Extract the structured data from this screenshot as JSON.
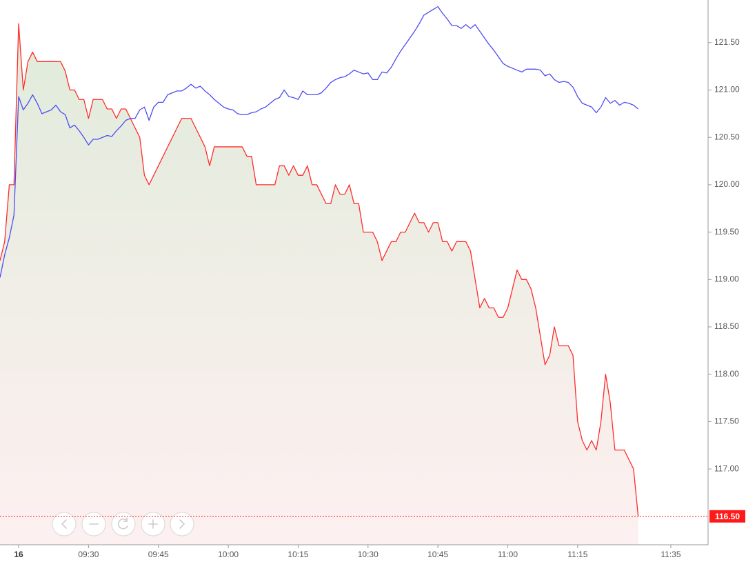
{
  "chart_data": {
    "type": "line",
    "x": [
      "09:11",
      "09:12",
      "09:13",
      "09:14",
      "09:15",
      "09:16",
      "09:17",
      "09:18",
      "09:19",
      "09:20",
      "09:21",
      "09:22",
      "09:23",
      "09:24",
      "09:25",
      "09:26",
      "09:27",
      "09:28",
      "09:29",
      "09:30",
      "09:31",
      "09:32",
      "09:33",
      "09:34",
      "09:35",
      "09:36",
      "09:37",
      "09:38",
      "09:39",
      "09:40",
      "09:41",
      "09:42",
      "09:43",
      "09:44",
      "09:45",
      "09:46",
      "09:47",
      "09:48",
      "09:49",
      "09:50",
      "09:51",
      "09:52",
      "09:53",
      "09:54",
      "09:55",
      "09:56",
      "09:57",
      "09:58",
      "09:59",
      "10:00",
      "10:01",
      "10:02",
      "10:03",
      "10:04",
      "10:05",
      "10:06",
      "10:07",
      "10:08",
      "10:09",
      "10:10",
      "10:11",
      "10:12",
      "10:13",
      "10:14",
      "10:15",
      "10:16",
      "10:17",
      "10:18",
      "10:19",
      "10:20",
      "10:21",
      "10:22",
      "10:23",
      "10:24",
      "10:25",
      "10:26",
      "10:27",
      "10:28",
      "10:29",
      "10:30",
      "10:31",
      "10:32",
      "10:33",
      "10:34",
      "10:35",
      "10:36",
      "10:37",
      "10:38",
      "10:39",
      "10:40",
      "10:41",
      "10:42",
      "10:43",
      "10:44",
      "10:45",
      "10:46",
      "10:47",
      "10:48",
      "10:49",
      "10:50",
      "10:51",
      "10:52",
      "10:53",
      "10:54",
      "10:55",
      "10:56",
      "10:57",
      "10:58",
      "10:59",
      "11:00",
      "11:01",
      "11:02",
      "11:03",
      "11:04",
      "11:05",
      "11:06",
      "11:07",
      "11:08",
      "11:09",
      "11:10",
      "11:11",
      "11:12",
      "11:13",
      "11:14",
      "11:15",
      "11:16",
      "11:17",
      "11:18",
      "11:19",
      "11:20",
      "11:21",
      "11:22",
      "11:23",
      "11:24",
      "11:25",
      "11:26",
      "11:27",
      "11:28"
    ],
    "series": [
      {
        "color": "#ff2b2b",
        "values": [
          119.2,
          119.4,
          120.0,
          120.0,
          121.7,
          121.0,
          121.3,
          121.4,
          121.3,
          121.3,
          121.3,
          121.3,
          121.3,
          121.3,
          121.2,
          121.0,
          121.0,
          120.9,
          120.9,
          120.7,
          120.9,
          120.9,
          120.9,
          120.8,
          120.8,
          120.7,
          120.8,
          120.8,
          120.7,
          120.6,
          120.5,
          120.1,
          120.0,
          120.1,
          120.2,
          120.3,
          120.4,
          120.5,
          120.6,
          120.7,
          120.7,
          120.7,
          120.6,
          120.5,
          120.4,
          120.2,
          120.4,
          120.4,
          120.4,
          120.4,
          120.4,
          120.4,
          120.4,
          120.3,
          120.3,
          120.0,
          120.0,
          120.0,
          120.0,
          120.0,
          120.2,
          120.2,
          120.1,
          120.2,
          120.1,
          120.1,
          120.2,
          120.0,
          120.0,
          119.9,
          119.8,
          119.8,
          120.0,
          119.9,
          119.9,
          120.0,
          119.8,
          119.8,
          119.5,
          119.5,
          119.5,
          119.4,
          119.2,
          119.3,
          119.4,
          119.4,
          119.5,
          119.5,
          119.6,
          119.7,
          119.6,
          119.6,
          119.5,
          119.6,
          119.6,
          119.4,
          119.4,
          119.3,
          119.4,
          119.4,
          119.4,
          119.3,
          119.0,
          118.7,
          118.8,
          118.7,
          118.7,
          118.6,
          118.6,
          118.7,
          118.9,
          119.1,
          119.0,
          119.0,
          118.9,
          118.7,
          118.4,
          118.1,
          118.2,
          118.5,
          118.3,
          118.3,
          118.3,
          118.2,
          117.5,
          117.3,
          117.2,
          117.3,
          117.2,
          117.5,
          118.0,
          117.7,
          117.2,
          117.2,
          117.2,
          117.1,
          117.0,
          116.5
        ]
      },
      {
        "color": "#4b4bf5",
        "values": [
          119.02,
          119.26,
          119.44,
          119.68,
          120.93,
          120.79,
          120.86,
          120.95,
          120.86,
          120.75,
          120.77,
          120.79,
          120.84,
          120.77,
          120.74,
          120.6,
          120.63,
          120.57,
          120.5,
          120.42,
          120.48,
          120.48,
          120.5,
          120.52,
          120.51,
          120.57,
          120.62,
          120.68,
          120.7,
          120.7,
          120.79,
          120.82,
          120.68,
          120.82,
          120.87,
          120.87,
          120.95,
          120.97,
          120.99,
          120.99,
          121.02,
          121.06,
          121.02,
          121.04,
          120.99,
          120.95,
          120.9,
          120.86,
          120.82,
          120.8,
          120.79,
          120.75,
          120.74,
          120.74,
          120.76,
          120.77,
          120.8,
          120.82,
          120.86,
          120.9,
          120.92,
          121.0,
          120.93,
          120.92,
          120.9,
          120.99,
          120.95,
          120.95,
          120.95,
          120.97,
          121.02,
          121.08,
          121.11,
          121.13,
          121.14,
          121.17,
          121.21,
          121.19,
          121.17,
          121.18,
          121.11,
          121.11,
          121.19,
          121.18,
          121.24,
          121.33,
          121.41,
          121.48,
          121.55,
          121.62,
          121.7,
          121.79,
          121.82,
          121.85,
          121.88,
          121.81,
          121.75,
          121.68,
          121.68,
          121.65,
          121.69,
          121.65,
          121.69,
          121.62,
          121.55,
          121.48,
          121.42,
          121.35,
          121.28,
          121.25,
          121.23,
          121.21,
          121.19,
          121.22,
          121.22,
          121.22,
          121.21,
          121.15,
          121.17,
          121.11,
          121.08,
          121.09,
          121.08,
          121.03,
          120.93,
          120.86,
          120.84,
          120.82,
          120.76,
          120.82,
          120.92,
          120.86,
          120.89,
          120.84,
          120.87,
          120.86,
          120.84,
          120.8
        ]
      }
    ],
    "xlim": [
      "09:11",
      "11:43"
    ],
    "xticks": [
      {
        "value": "09:15",
        "label": "16"
      },
      "09:30",
      "09:45",
      "10:00",
      "10:15",
      "10:30",
      "10:45",
      "11:00",
      "11:15",
      "11:35"
    ],
    "ylim": [
      116.2,
      121.95
    ],
    "yticks": [
      {
        "value": 117,
        "label": "117.00"
      },
      {
        "value": 117.5,
        "label": "117.50"
      },
      {
        "value": 118,
        "label": "118.00"
      },
      {
        "value": 118.5,
        "label": "118.50"
      },
      {
        "value": 119,
        "label": "119.00"
      },
      {
        "value": 119.5,
        "label": "119.50"
      },
      {
        "value": 120,
        "label": "120.00"
      },
      {
        "value": 120.5,
        "label": "120.50"
      },
      {
        "value": 121,
        "label": "121.00"
      },
      {
        "value": 121.5,
        "label": "121.50"
      }
    ],
    "last_price": {
      "value": 116.5,
      "label": "116.50"
    },
    "area_fill": true,
    "grid": false
  }
}
